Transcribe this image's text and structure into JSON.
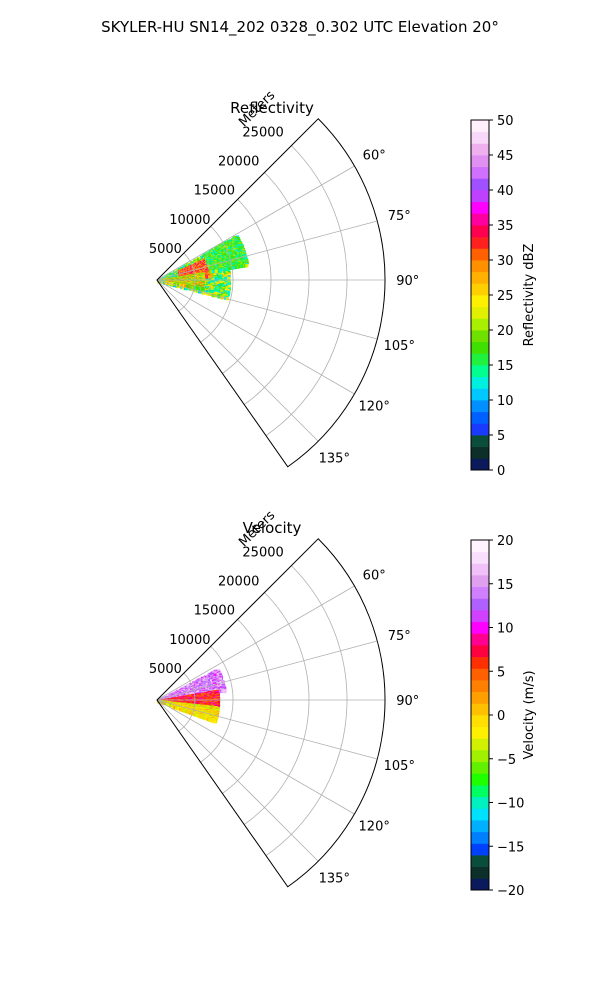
{
  "figure": {
    "suptitle": "SKYLER-HU  SN14_202  0328_0.302 UTC Elevation 20°"
  },
  "chart_data": [
    {
      "type": "heatmap",
      "projection": "polar-sector",
      "title": "Reflectivity",
      "radial_label": "Meters",
      "radial_ticks": [
        5000,
        10000,
        15000,
        20000,
        25000
      ],
      "radial_tick_labels": [
        "5000",
        "10000",
        "15000",
        "20000",
        "25000"
      ],
      "radial_range": [
        0,
        30000
      ],
      "azimuth_range_deg": [
        45,
        145
      ],
      "azimuth_ticks": [
        60,
        75,
        90,
        105,
        120,
        135
      ],
      "azimuth_tick_labels": [
        "60°",
        "75°",
        "90°",
        "105°",
        "120°",
        "135°"
      ],
      "grid": true,
      "colorbar": {
        "label": "Reflectivity dBZ",
        "range": [
          0,
          50
        ],
        "ticks": [
          0,
          5,
          10,
          15,
          20,
          25,
          30,
          35,
          40,
          45,
          50
        ],
        "tick_labels": [
          "0",
          "5",
          "10",
          "15",
          "20",
          "25",
          "30",
          "35",
          "40",
          "45",
          "50"
        ],
        "colors": [
          "#0a1a5a",
          "#0d2f2a",
          "#0a4d3a",
          "#1a3aff",
          "#0060ff",
          "#0090ff",
          "#00c8ff",
          "#00f0e0",
          "#00ff90",
          "#20f040",
          "#40e000",
          "#70e000",
          "#a8f000",
          "#e0f000",
          "#fff000",
          "#ffd000",
          "#ffb000",
          "#ff9000",
          "#ff6000",
          "#ff2020",
          "#ff0050",
          "#ff00a0",
          "#ff00ff",
          "#c040ff",
          "#a050ff",
          "#d070ff",
          "#e090f0",
          "#f0b0f0",
          "#f8d8f8",
          "#fff0fc"
        ]
      },
      "echo_regions": [
        {
          "az": [
            60,
            105
          ],
          "range": [
            0,
            9500
          ],
          "value_range": [
            10,
            26
          ]
        },
        {
          "az": [
            65,
            85
          ],
          "range": [
            3000,
            7000
          ],
          "value_range": [
            25,
            37
          ]
        },
        {
          "az": [
            80,
            100
          ],
          "range": [
            1000,
            6000
          ],
          "value_range": [
            14,
            32
          ]
        },
        {
          "az": [
            60,
            80
          ],
          "range": [
            7000,
            12000
          ],
          "value_range": [
            12,
            22
          ]
        }
      ]
    },
    {
      "type": "heatmap",
      "projection": "polar-sector",
      "title": "Velocity",
      "radial_label": "Meters",
      "radial_ticks": [
        5000,
        10000,
        15000,
        20000,
        25000
      ],
      "radial_tick_labels": [
        "5000",
        "10000",
        "15000",
        "20000",
        "25000"
      ],
      "radial_range": [
        0,
        30000
      ],
      "azimuth_range_deg": [
        45,
        145
      ],
      "azimuth_ticks": [
        60,
        75,
        90,
        105,
        120,
        135
      ],
      "azimuth_tick_labels": [
        "60°",
        "75°",
        "90°",
        "105°",
        "120°",
        "135°"
      ],
      "grid": true,
      "colorbar": {
        "label": "Velocity (m/s)",
        "range": [
          -20,
          20
        ],
        "ticks": [
          -20,
          -15,
          -10,
          -5,
          0,
          5,
          10,
          15,
          20
        ],
        "tick_labels": [
          "−20",
          "−15",
          "−10",
          "−5",
          "0",
          "5",
          "10",
          "15",
          "20"
        ],
        "colors": [
          "#0a1a5a",
          "#0d2f2a",
          "#0a4d3a",
          "#0040ff",
          "#0080ff",
          "#00b0ff",
          "#00e0ff",
          "#00f0c0",
          "#00ff60",
          "#20ff00",
          "#60f000",
          "#a0f000",
          "#d0f000",
          "#fff000",
          "#ffe000",
          "#ffc000",
          "#ffa000",
          "#ff8000",
          "#ff6000",
          "#ff3000",
          "#ff0040",
          "#ff0090",
          "#ff00ff",
          "#d040ff",
          "#b060ff",
          "#d080ff",
          "#e0a0f0",
          "#f0c0f8",
          "#f8e0fc",
          "#fff4fe"
        ]
      },
      "echo_regions": [
        {
          "az": [
            62,
            82
          ],
          "range": [
            0,
            9000
          ],
          "value_range": [
            10,
            18
          ]
        },
        {
          "az": [
            80,
            96
          ],
          "range": [
            0,
            8000
          ],
          "value_range": [
            3,
            10
          ]
        },
        {
          "az": [
            96,
            106
          ],
          "range": [
            0,
            8000
          ],
          "value_range": [
            -6,
            3
          ]
        },
        {
          "az": [
            100,
            110
          ],
          "range": [
            2000,
            8000
          ],
          "value_range": [
            -4,
            2
          ]
        }
      ]
    }
  ]
}
